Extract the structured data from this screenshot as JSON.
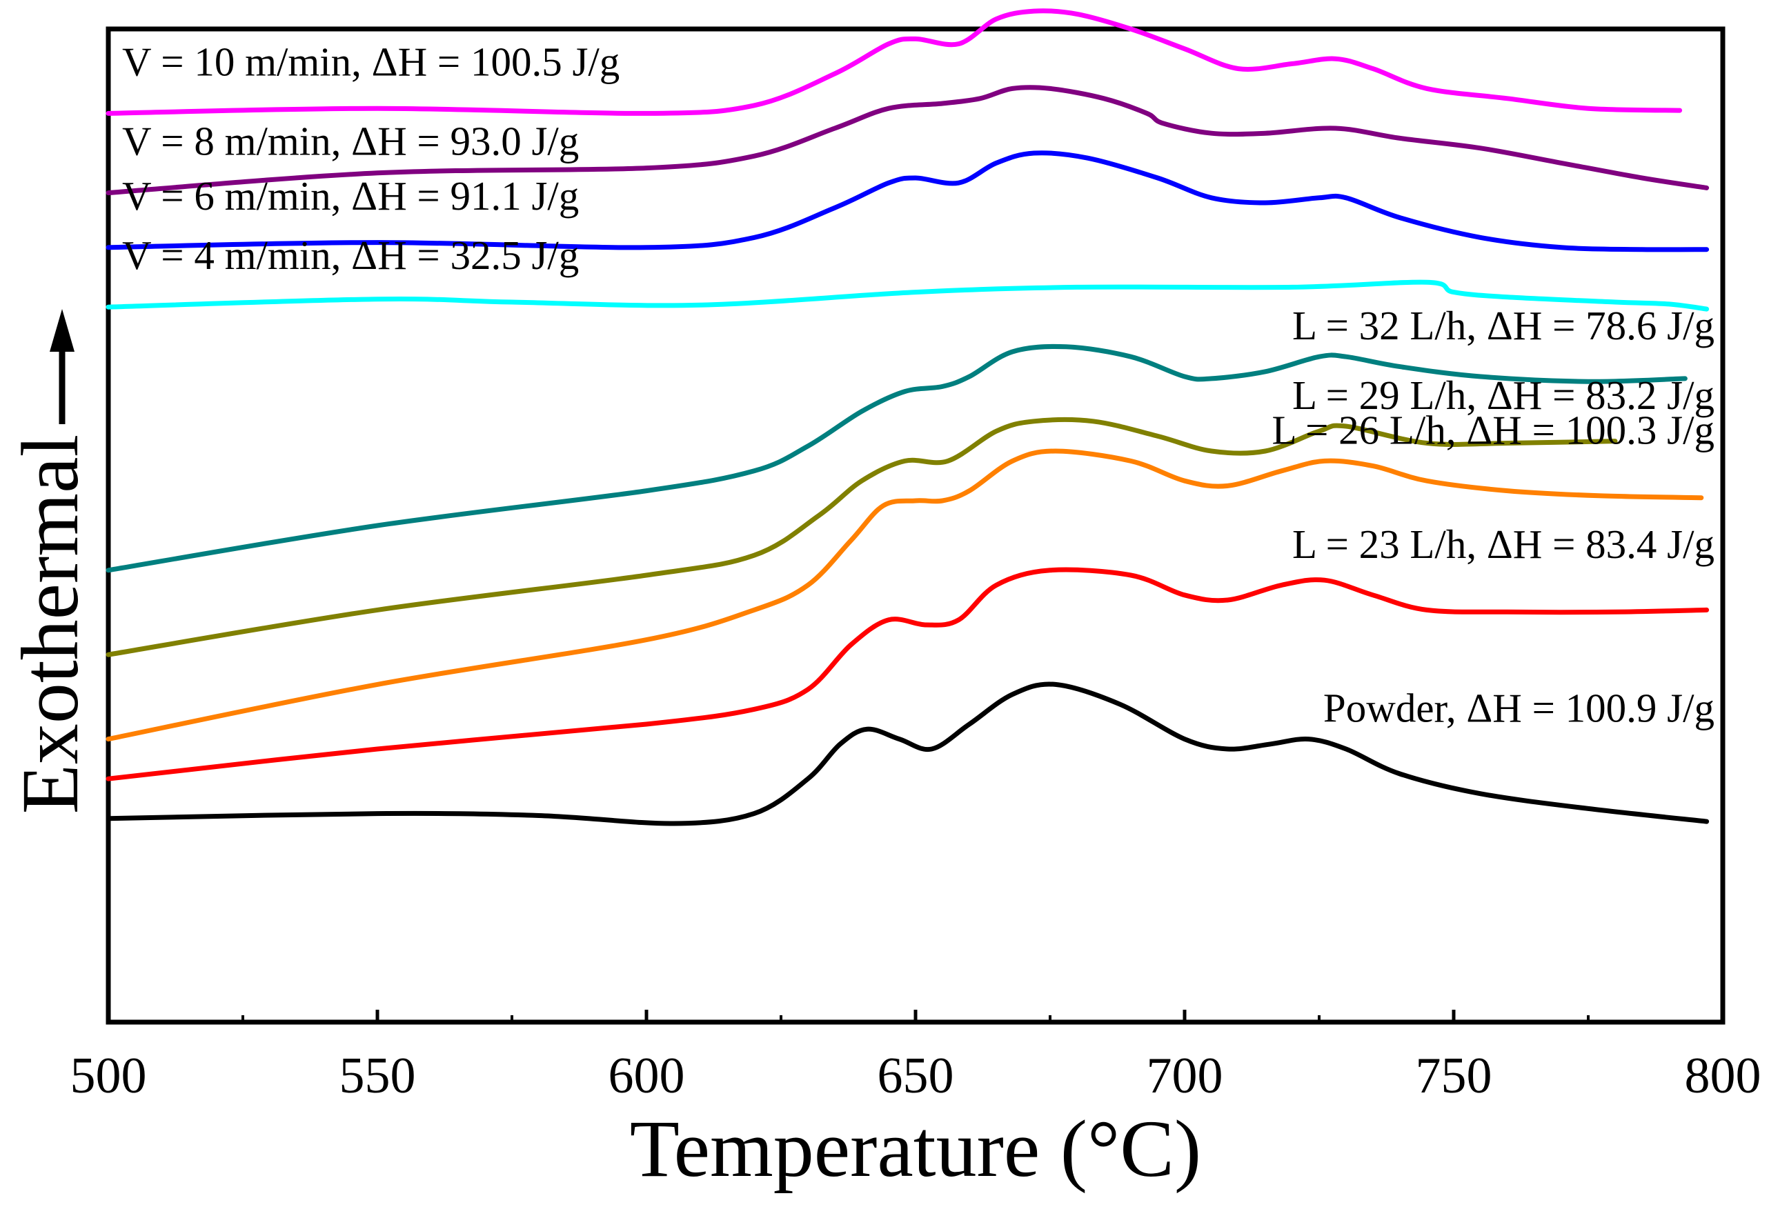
{
  "chart_data": {
    "type": "line",
    "title": "",
    "xlabel": "Temperature (°C)",
    "ylabel": "Exothermal",
    "xlim": [
      500,
      800
    ],
    "ylim": [
      0,
      100
    ],
    "x_ticks": [
      500,
      550,
      600,
      650,
      700,
      750,
      800
    ],
    "x_minor_ticks": [
      525,
      575,
      625,
      675,
      725,
      775
    ],
    "y_axis_arrow": "up",
    "grid": false,
    "series": [
      {
        "name": "V = 10 m/min, ΔH = 100.5 J/g",
        "color": "#ff00ff",
        "label_side": "left",
        "points": [
          [
            500,
            91.5
          ],
          [
            550,
            92
          ],
          [
            600,
            91.5
          ],
          [
            620,
            92.3
          ],
          [
            635,
            95.5
          ],
          [
            645,
            98.5
          ],
          [
            650,
            99
          ],
          [
            658,
            98.5
          ],
          [
            665,
            101
          ],
          [
            672,
            101.8
          ],
          [
            680,
            101.5
          ],
          [
            690,
            100
          ],
          [
            700,
            98
          ],
          [
            710,
            96
          ],
          [
            720,
            96.5
          ],
          [
            728,
            97
          ],
          [
            735,
            96
          ],
          [
            745,
            94
          ],
          [
            760,
            93
          ],
          [
            775,
            92
          ],
          [
            792,
            91.8
          ]
        ]
      },
      {
        "name": "V = 8 m/min, ΔH = 93.0 J/g",
        "color": "#800080",
        "label_side": "left",
        "points": [
          [
            500,
            83.5
          ],
          [
            550,
            85.5
          ],
          [
            600,
            86
          ],
          [
            620,
            87.2
          ],
          [
            635,
            90
          ],
          [
            645,
            92
          ],
          [
            655,
            92.5
          ],
          [
            662,
            93
          ],
          [
            668,
            94
          ],
          [
            675,
            94
          ],
          [
            685,
            93
          ],
          [
            693,
            91.5
          ],
          [
            696,
            90.5
          ],
          [
            705,
            89.5
          ],
          [
            715,
            89.5
          ],
          [
            728,
            90
          ],
          [
            740,
            89
          ],
          [
            755,
            88
          ],
          [
            770,
            86.5
          ],
          [
            785,
            85
          ],
          [
            797,
            84
          ]
        ]
      },
      {
        "name": "V = 6 m/min, ΔH = 91.1 J/g",
        "color": "#0000ff",
        "label_side": "left",
        "points": [
          [
            500,
            78
          ],
          [
            550,
            78.5
          ],
          [
            600,
            78
          ],
          [
            620,
            79
          ],
          [
            635,
            82
          ],
          [
            645,
            84.5
          ],
          [
            650,
            85
          ],
          [
            658,
            84.5
          ],
          [
            665,
            86.5
          ],
          [
            672,
            87.5
          ],
          [
            682,
            87
          ],
          [
            695,
            85
          ],
          [
            705,
            83
          ],
          [
            715,
            82.5
          ],
          [
            725,
            83
          ],
          [
            730,
            83
          ],
          [
            740,
            81
          ],
          [
            755,
            79
          ],
          [
            770,
            78
          ],
          [
            785,
            77.8
          ],
          [
            797,
            77.8
          ]
        ]
      },
      {
        "name": "V = 4 m/min, ΔH = 32.5 J/g",
        "color": "#00ffff",
        "label_side": "left",
        "points": [
          [
            500,
            72
          ],
          [
            550,
            72.8
          ],
          [
            575,
            72.5
          ],
          [
            610,
            72.2
          ],
          [
            650,
            73.5
          ],
          [
            680,
            74
          ],
          [
            720,
            74
          ],
          [
            745,
            74.5
          ],
          [
            750,
            73.5
          ],
          [
            760,
            73
          ],
          [
            780,
            72.5
          ],
          [
            790,
            72.3
          ],
          [
            797,
            71.8
          ]
        ]
      },
      {
        "name": "L = 32 L/h, ΔH = 78.6 J/g",
        "color": "#007f7f",
        "label_side": "right",
        "points": [
          [
            500,
            45.5
          ],
          [
            550,
            50
          ],
          [
            600,
            53.5
          ],
          [
            620,
            55.5
          ],
          [
            630,
            58
          ],
          [
            640,
            61.5
          ],
          [
            648,
            63.5
          ],
          [
            655,
            64
          ],
          [
            660,
            65
          ],
          [
            668,
            67.5
          ],
          [
            678,
            68
          ],
          [
            690,
            67
          ],
          [
            700,
            65
          ],
          [
            705,
            64.8
          ],
          [
            715,
            65.5
          ],
          [
            725,
            67
          ],
          [
            730,
            67
          ],
          [
            740,
            66
          ],
          [
            755,
            65
          ],
          [
            775,
            64.5
          ],
          [
            793,
            64.8
          ]
        ]
      },
      {
        "name": "L = 29 L/h, ΔH = 83.2 J/g",
        "color": "#808000",
        "label_side": "right",
        "points": [
          [
            500,
            37
          ],
          [
            550,
            41.5
          ],
          [
            600,
            45
          ],
          [
            620,
            47
          ],
          [
            632,
            51
          ],
          [
            640,
            54.5
          ],
          [
            648,
            56.5
          ],
          [
            656,
            56.5
          ],
          [
            665,
            59.5
          ],
          [
            672,
            60.5
          ],
          [
            683,
            60.5
          ],
          [
            695,
            59
          ],
          [
            705,
            57.5
          ],
          [
            715,
            57.5
          ],
          [
            725,
            59.5
          ],
          [
            730,
            60
          ],
          [
            745,
            58.3
          ],
          [
            760,
            58.3
          ],
          [
            780,
            58.5
          ]
        ]
      },
      {
        "name": "L = 26 L/h, ΔH = 100.3 J/g",
        "color": "#ff8000",
        "label_side": "right",
        "points": [
          [
            500,
            28.5
          ],
          [
            550,
            34
          ],
          [
            600,
            38.5
          ],
          [
            620,
            41.5
          ],
          [
            630,
            44
          ],
          [
            638,
            48.5
          ],
          [
            644,
            52
          ],
          [
            650,
            52.5
          ],
          [
            655,
            52.5
          ],
          [
            660,
            53.5
          ],
          [
            668,
            56.5
          ],
          [
            676,
            57.5
          ],
          [
            690,
            56.5
          ],
          [
            700,
            54.5
          ],
          [
            708,
            54
          ],
          [
            718,
            55.5
          ],
          [
            726,
            56.5
          ],
          [
            735,
            56
          ],
          [
            745,
            54.5
          ],
          [
            760,
            53.5
          ],
          [
            777,
            53
          ],
          [
            796,
            52.8
          ]
        ]
      },
      {
        "name": "L = 23 L/h, ΔH = 83.4 J/g",
        "color": "#ff0000",
        "label_side": "right",
        "points": [
          [
            500,
            24.5
          ],
          [
            550,
            27.5
          ],
          [
            600,
            30
          ],
          [
            620,
            31.5
          ],
          [
            630,
            33.5
          ],
          [
            638,
            38
          ],
          [
            645,
            40.5
          ],
          [
            652,
            40
          ],
          [
            658,
            40.5
          ],
          [
            665,
            44
          ],
          [
            675,
            45.5
          ],
          [
            690,
            45
          ],
          [
            700,
            43
          ],
          [
            708,
            42.5
          ],
          [
            718,
            44
          ],
          [
            726,
            44.5
          ],
          [
            735,
            43
          ],
          [
            745,
            41.5
          ],
          [
            760,
            41.3
          ],
          [
            780,
            41.3
          ],
          [
            797,
            41.5
          ]
        ]
      },
      {
        "name": "Powder, ΔH = 100.9 J/g",
        "color": "#000000",
        "label_side": "right",
        "points": [
          [
            500,
            20.5
          ],
          [
            550,
            21
          ],
          [
            580,
            20.8
          ],
          [
            605,
            20
          ],
          [
            620,
            21
          ],
          [
            630,
            24.5
          ],
          [
            636,
            28
          ],
          [
            641,
            29.5
          ],
          [
            647,
            28.5
          ],
          [
            653,
            27.5
          ],
          [
            660,
            30
          ],
          [
            668,
            33
          ],
          [
            676,
            34
          ],
          [
            688,
            32
          ],
          [
            700,
            28.5
          ],
          [
            708,
            27.5
          ],
          [
            716,
            28
          ],
          [
            723,
            28.5
          ],
          [
            730,
            27.5
          ],
          [
            740,
            25
          ],
          [
            755,
            23
          ],
          [
            775,
            21.5
          ],
          [
            797,
            20.2
          ]
        ]
      }
    ]
  }
}
